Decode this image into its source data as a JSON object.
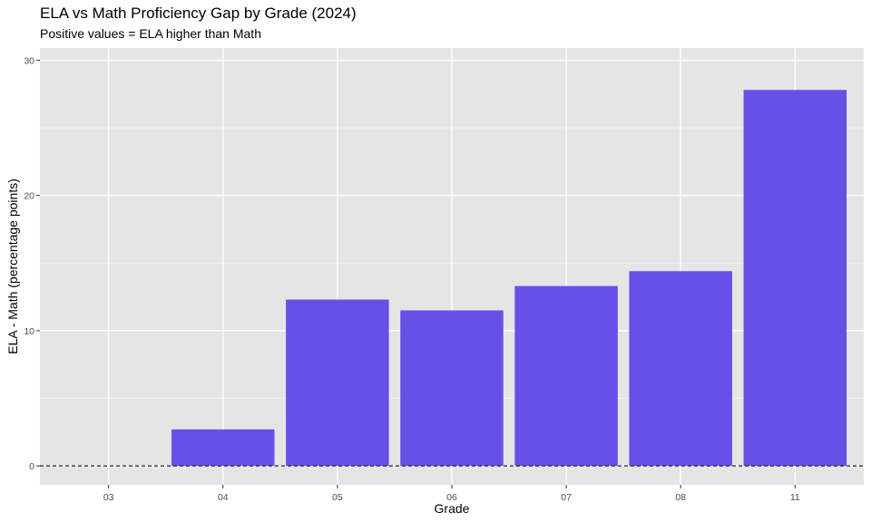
{
  "chart_data": {
    "type": "bar",
    "title": "ELA vs Math Proficiency Gap by Grade (2024)",
    "subtitle": "Positive values = ELA higher than Math",
    "xlabel": "Grade",
    "ylabel": "ELA - Math (percentage points)",
    "categories": [
      "03",
      "04",
      "05",
      "06",
      "07",
      "08",
      "11"
    ],
    "values": [
      0,
      2.7,
      12.3,
      11.5,
      13.3,
      14.4,
      27.8
    ],
    "ylim": [
      -1.4,
      30.9
    ],
    "yticks": [
      0,
      10,
      20,
      30
    ],
    "bar_color": "#6750E8",
    "panel_background": "#E5E5E5",
    "grid": true,
    "reference_line": {
      "y": 0,
      "style": "dashed"
    }
  }
}
